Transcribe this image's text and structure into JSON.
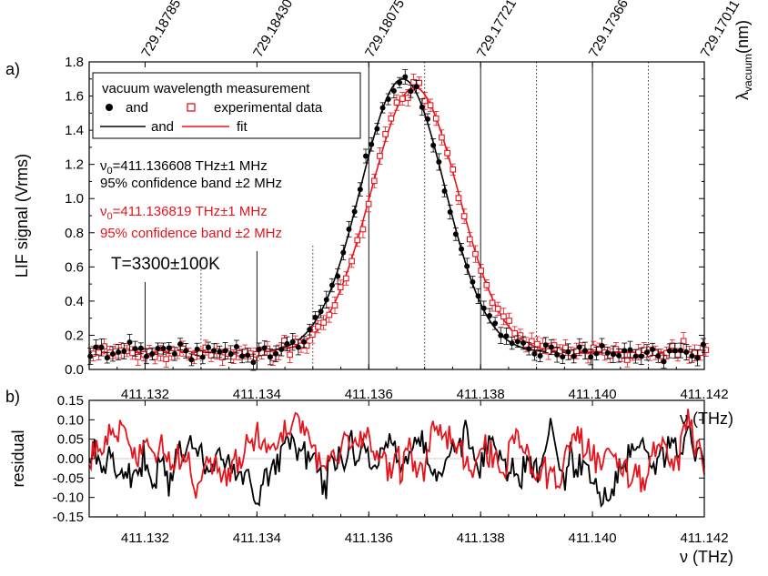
{
  "chart_data": [
    {
      "panel_label": "a)",
      "type": "scatter",
      "ylabel": "LIF signal (Vrms)",
      "xlabel": "",
      "top_axis_label": "λvacuum(nm)",
      "top_axis_label_main": "λ",
      "top_axis_label_sub": "vacuum",
      "top_axis_label_unit": "(nm)",
      "xlim": [
        411.131,
        411.142
      ],
      "ylim": [
        0.0,
        1.8
      ],
      "x_ticks": [
        "411.132",
        "411.134",
        "411.136",
        "411.138",
        "411.140",
        "411.142"
      ],
      "x_tick_values": [
        411.132,
        411.134,
        411.136,
        411.138,
        411.14,
        411.142
      ],
      "y_ticks": [
        "0.0",
        "0.2",
        "0.4",
        "0.6",
        "0.8",
        "1.0",
        "1.2",
        "1.4",
        "1.6",
        "1.8"
      ],
      "y_tick_values": [
        0.0,
        0.2,
        0.4,
        0.6,
        0.8,
        1.0,
        1.2,
        1.4,
        1.6,
        1.8
      ],
      "top_ticks": [
        "729.18785",
        "729.18430",
        "729.18075",
        "729.17721",
        "729.17366",
        "729.17011"
      ],
      "top_tick_positions_thz": [
        411.132,
        411.134,
        411.136,
        411.138,
        411.14,
        411.142
      ],
      "wavelength_markers_solid_thz": [
        411.132,
        411.134,
        411.136,
        411.138,
        411.14
      ],
      "wavelength_markers_dotted_thz": [
        411.133,
        411.135,
        411.137,
        411.139,
        411.141
      ],
      "legend": {
        "title": "vacuum wavelength measurement",
        "row1_word": "and",
        "row1_label": "experimental data",
        "row2_word": "and",
        "row2_label": "fit"
      },
      "annotations": {
        "black_nu_symbol": "ν",
        "black_nu_sub": "0",
        "black_nu_value": "=411.136608 THz±1 MHz",
        "black_band": "95% confidence band ±2 MHz",
        "red_nu_symbol": "ν",
        "red_nu_sub": "0",
        "red_nu_value": "=411.136819 THz±1 MHz",
        "red_band": "95% confidence band ±2 MHz",
        "temperature": "T=3300±100K"
      },
      "series": [
        {
          "color": "#000000",
          "marker": "filled-circle",
          "center_thz": 411.136608,
          "amplitude": 1.6,
          "sigma_thz": 0.00075,
          "baseline": 0.1
        },
        {
          "color": "#e8141c",
          "marker": "open-square",
          "center_thz": 411.136819,
          "amplitude": 1.55,
          "sigma_thz": 0.00078,
          "baseline": 0.1
        }
      ],
      "colors": {
        "black": "#000000",
        "red": "#e8141c"
      }
    },
    {
      "panel_label": "b)",
      "type": "line",
      "ylabel": "residual",
      "xlabel": "ν (THz)",
      "xlabel_upper": "ν (THz)",
      "xlim": [
        411.131,
        411.142
      ],
      "ylim": [
        -0.15,
        0.15
      ],
      "x_ticks": [
        "411.132",
        "411.134",
        "411.136",
        "411.138",
        "411.140",
        "411.142"
      ],
      "x_tick_values": [
        411.132,
        411.134,
        411.136,
        411.138,
        411.14,
        411.142
      ],
      "y_ticks": [
        "0.15",
        "0.10",
        "0.05",
        "0.00",
        "-0.05",
        "-0.10",
        "-0.15"
      ],
      "y_tick_values": [
        0.15,
        0.1,
        0.05,
        0.0,
        -0.05,
        -0.1,
        -0.15
      ],
      "series": [
        {
          "color": "#000000",
          "amplitude": 0.05
        },
        {
          "color": "#e8141c",
          "amplitude": 0.05
        }
      ]
    }
  ]
}
